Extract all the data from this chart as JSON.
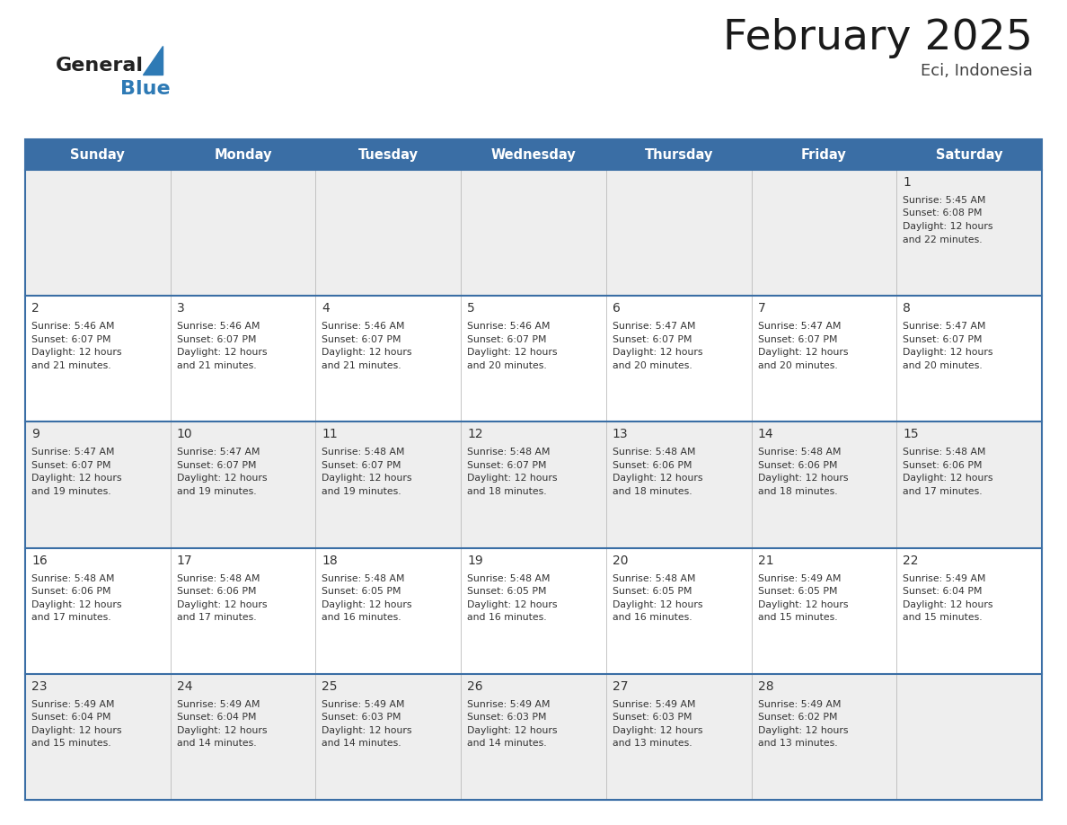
{
  "title": "February 2025",
  "subtitle": "Eci, Indonesia",
  "header_color": "#3a6ea5",
  "header_text_color": "#ffffff",
  "days_of_week": [
    "Sunday",
    "Monday",
    "Tuesday",
    "Wednesday",
    "Thursday",
    "Friday",
    "Saturday"
  ],
  "row_bg_even": "#eeeeee",
  "row_bg_odd": "#ffffff",
  "border_color": "#3a6ea5",
  "cell_border_color": "#3a6ea5",
  "text_color": "#333333",
  "day_num_fontsize": 10,
  "cell_text_fontsize": 7.8,
  "header_fontsize": 10.5,
  "title_fontsize": 34,
  "subtitle_fontsize": 13,
  "calendar_data": [
    [
      null,
      null,
      null,
      null,
      null,
      null,
      {
        "day": 1,
        "sunrise": "5:45 AM",
        "sunset": "6:08 PM",
        "daylight_line1": "Daylight: 12 hours",
        "daylight_line2": "and 22 minutes."
      }
    ],
    [
      {
        "day": 2,
        "sunrise": "5:46 AM",
        "sunset": "6:07 PM",
        "daylight_line1": "Daylight: 12 hours",
        "daylight_line2": "and 21 minutes."
      },
      {
        "day": 3,
        "sunrise": "5:46 AM",
        "sunset": "6:07 PM",
        "daylight_line1": "Daylight: 12 hours",
        "daylight_line2": "and 21 minutes."
      },
      {
        "day": 4,
        "sunrise": "5:46 AM",
        "sunset": "6:07 PM",
        "daylight_line1": "Daylight: 12 hours",
        "daylight_line2": "and 21 minutes."
      },
      {
        "day": 5,
        "sunrise": "5:46 AM",
        "sunset": "6:07 PM",
        "daylight_line1": "Daylight: 12 hours",
        "daylight_line2": "and 20 minutes."
      },
      {
        "day": 6,
        "sunrise": "5:47 AM",
        "sunset": "6:07 PM",
        "daylight_line1": "Daylight: 12 hours",
        "daylight_line2": "and 20 minutes."
      },
      {
        "day": 7,
        "sunrise": "5:47 AM",
        "sunset": "6:07 PM",
        "daylight_line1": "Daylight: 12 hours",
        "daylight_line2": "and 20 minutes."
      },
      {
        "day": 8,
        "sunrise": "5:47 AM",
        "sunset": "6:07 PM",
        "daylight_line1": "Daylight: 12 hours",
        "daylight_line2": "and 20 minutes."
      }
    ],
    [
      {
        "day": 9,
        "sunrise": "5:47 AM",
        "sunset": "6:07 PM",
        "daylight_line1": "Daylight: 12 hours",
        "daylight_line2": "and 19 minutes."
      },
      {
        "day": 10,
        "sunrise": "5:47 AM",
        "sunset": "6:07 PM",
        "daylight_line1": "Daylight: 12 hours",
        "daylight_line2": "and 19 minutes."
      },
      {
        "day": 11,
        "sunrise": "5:48 AM",
        "sunset": "6:07 PM",
        "daylight_line1": "Daylight: 12 hours",
        "daylight_line2": "and 19 minutes."
      },
      {
        "day": 12,
        "sunrise": "5:48 AM",
        "sunset": "6:07 PM",
        "daylight_line1": "Daylight: 12 hours",
        "daylight_line2": "and 18 minutes."
      },
      {
        "day": 13,
        "sunrise": "5:48 AM",
        "sunset": "6:06 PM",
        "daylight_line1": "Daylight: 12 hours",
        "daylight_line2": "and 18 minutes."
      },
      {
        "day": 14,
        "sunrise": "5:48 AM",
        "sunset": "6:06 PM",
        "daylight_line1": "Daylight: 12 hours",
        "daylight_line2": "and 18 minutes."
      },
      {
        "day": 15,
        "sunrise": "5:48 AM",
        "sunset": "6:06 PM",
        "daylight_line1": "Daylight: 12 hours",
        "daylight_line2": "and 17 minutes."
      }
    ],
    [
      {
        "day": 16,
        "sunrise": "5:48 AM",
        "sunset": "6:06 PM",
        "daylight_line1": "Daylight: 12 hours",
        "daylight_line2": "and 17 minutes."
      },
      {
        "day": 17,
        "sunrise": "5:48 AM",
        "sunset": "6:06 PM",
        "daylight_line1": "Daylight: 12 hours",
        "daylight_line2": "and 17 minutes."
      },
      {
        "day": 18,
        "sunrise": "5:48 AM",
        "sunset": "6:05 PM",
        "daylight_line1": "Daylight: 12 hours",
        "daylight_line2": "and 16 minutes."
      },
      {
        "day": 19,
        "sunrise": "5:48 AM",
        "sunset": "6:05 PM",
        "daylight_line1": "Daylight: 12 hours",
        "daylight_line2": "and 16 minutes."
      },
      {
        "day": 20,
        "sunrise": "5:48 AM",
        "sunset": "6:05 PM",
        "daylight_line1": "Daylight: 12 hours",
        "daylight_line2": "and 16 minutes."
      },
      {
        "day": 21,
        "sunrise": "5:49 AM",
        "sunset": "6:05 PM",
        "daylight_line1": "Daylight: 12 hours",
        "daylight_line2": "and 15 minutes."
      },
      {
        "day": 22,
        "sunrise": "5:49 AM",
        "sunset": "6:04 PM",
        "daylight_line1": "Daylight: 12 hours",
        "daylight_line2": "and 15 minutes."
      }
    ],
    [
      {
        "day": 23,
        "sunrise": "5:49 AM",
        "sunset": "6:04 PM",
        "daylight_line1": "Daylight: 12 hours",
        "daylight_line2": "and 15 minutes."
      },
      {
        "day": 24,
        "sunrise": "5:49 AM",
        "sunset": "6:04 PM",
        "daylight_line1": "Daylight: 12 hours",
        "daylight_line2": "and 14 minutes."
      },
      {
        "day": 25,
        "sunrise": "5:49 AM",
        "sunset": "6:03 PM",
        "daylight_line1": "Daylight: 12 hours",
        "daylight_line2": "and 14 minutes."
      },
      {
        "day": 26,
        "sunrise": "5:49 AM",
        "sunset": "6:03 PM",
        "daylight_line1": "Daylight: 12 hours",
        "daylight_line2": "and 14 minutes."
      },
      {
        "day": 27,
        "sunrise": "5:49 AM",
        "sunset": "6:03 PM",
        "daylight_line1": "Daylight: 12 hours",
        "daylight_line2": "and 13 minutes."
      },
      {
        "day": 28,
        "sunrise": "5:49 AM",
        "sunset": "6:02 PM",
        "daylight_line1": "Daylight: 12 hours",
        "daylight_line2": "and 13 minutes."
      },
      null
    ]
  ],
  "logo_general_color": "#222222",
  "logo_blue_color": "#2e7ab5"
}
